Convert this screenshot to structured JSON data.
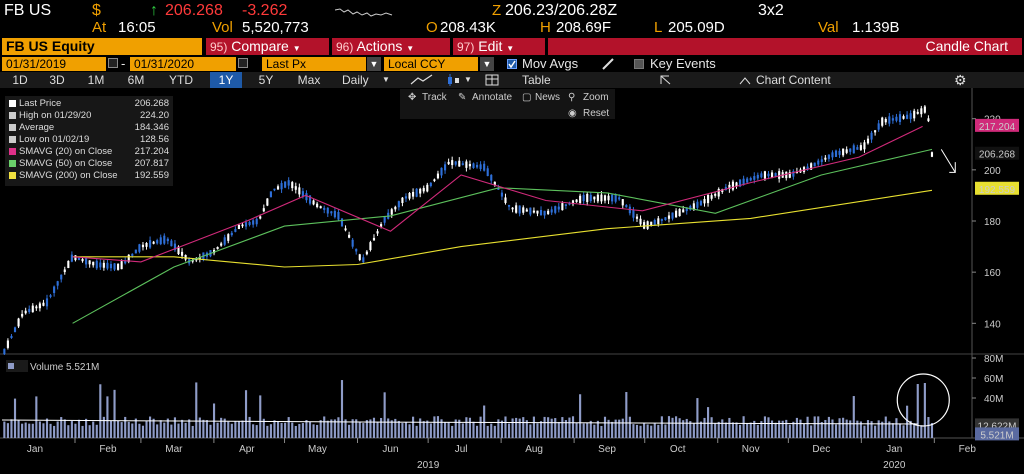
{
  "quote": {
    "ticker": "FB US",
    "dollar": "$",
    "arrow": "↑",
    "last": "206.268",
    "change": "-3.262",
    "at_label": "At",
    "time": "16:05",
    "vol_label": "Vol",
    "volume": "5,520,773",
    "open_label": "O",
    "open": "208.43K",
    "high_label": "H",
    "high": "208.69F",
    "low_label": "L",
    "low": "205.09D",
    "val_label": "Val",
    "value": "1.139B",
    "bidask_prefix": "Z",
    "bidask": "206.23/206.28Z",
    "size": "3x2"
  },
  "toolbar": {
    "security": "FB US Equity",
    "compare_num": "95)",
    "compare": "Compare",
    "actions_num": "96)",
    "actions": "Actions",
    "edit_num": "97)",
    "edit": "Edit",
    "chart_type": "Candle Chart",
    "start_date": "01/31/2019",
    "date_sep": "-",
    "end_date": "01/31/2020",
    "field": "Last Px",
    "currency": "Local CCY",
    "mov_avgs": "Mov Avgs",
    "key_events": "Key Events"
  },
  "periods": [
    "1D",
    "3D",
    "1M",
    "6M",
    "YTD",
    "1Y",
    "5Y",
    "Max"
  ],
  "selected_period": "1Y",
  "period_freq": "Daily",
  "table_label": "Table",
  "chart_content": "Chart Content",
  "tools": {
    "track": "Track",
    "annotate": "Annotate",
    "news": "News",
    "zoom": "Zoom",
    "reset": "Reset"
  },
  "legend": [
    {
      "name": "Last Price",
      "value": "206.268",
      "color": "#ffffff"
    },
    {
      "name": "High on 01/29/20",
      "value": "224.20",
      "color": "#cccccc"
    },
    {
      "name": "Average",
      "value": "184.346",
      "color": "#cccccc"
    },
    {
      "name": "Low on 01/02/19",
      "value": "128.56",
      "color": "#cccccc"
    },
    {
      "name": "SMAVG (20)  on Close",
      "value": "217.204",
      "color": "#e0308a"
    },
    {
      "name": "SMAVG (50)  on Close",
      "value": "207.817",
      "color": "#6ad06a"
    },
    {
      "name": "SMAVG (200)  on Close",
      "value": "192.559",
      "color": "#f0e040"
    }
  ],
  "volume_legend": {
    "name": "Volume",
    "value": "5.521M"
  },
  "colors": {
    "amber": "#f0a000",
    "up_candle": "#2e6fd8",
    "down_candle": "#ffffff",
    "sma20": "#d02a7a",
    "sma50": "#5cc05c",
    "sma200": "#e8e030",
    "volume_bar": "#8f9cc8",
    "volume_avg": "#ffffff"
  },
  "chart_data": {
    "type": "candlestick",
    "period": "Daily",
    "range": "01/31/2019 - 01/31/2020",
    "ylim": [
      128,
      232
    ],
    "price_ticks": [
      140,
      160,
      180,
      200,
      220
    ],
    "volume_ticks": [
      "40M",
      "60M",
      "80M"
    ],
    "volume_ylim": [
      0,
      80
    ],
    "x_month_labels": [
      "Jan",
      "Feb",
      "Mar",
      "Apr",
      "May",
      "Jun",
      "Jul",
      "Aug",
      "Sep",
      "Oct",
      "Nov",
      "Dec",
      "Jan",
      "Feb"
    ],
    "year_labels": [
      "2019",
      "2020"
    ],
    "last_price_tag": "206.268",
    "sma20_tag": "217.204",
    "sma200_tag": "192.559",
    "volume_tags": [
      "12.622M",
      "5.521M"
    ],
    "price_path": [
      [
        "2019-01-02",
        129
      ],
      [
        "2019-01-10",
        144
      ],
      [
        "2019-01-20",
        148
      ],
      [
        "2019-01-31",
        166
      ],
      [
        "2019-02-10",
        163
      ],
      [
        "2019-02-20",
        162
      ],
      [
        "2019-03-01",
        170
      ],
      [
        "2019-03-12",
        173
      ],
      [
        "2019-03-22",
        164
      ],
      [
        "2019-04-01",
        168
      ],
      [
        "2019-04-12",
        178
      ],
      [
        "2019-04-20",
        180
      ],
      [
        "2019-04-26",
        192
      ],
      [
        "2019-05-03",
        195
      ],
      [
        "2019-05-15",
        186
      ],
      [
        "2019-05-24",
        182
      ],
      [
        "2019-06-03",
        164
      ],
      [
        "2019-06-12",
        180
      ],
      [
        "2019-06-21",
        189
      ],
      [
        "2019-07-01",
        193
      ],
      [
        "2019-07-10",
        203
      ],
      [
        "2019-07-25",
        201
      ],
      [
        "2019-08-05",
        185
      ],
      [
        "2019-08-20",
        183
      ],
      [
        "2019-09-05",
        189
      ],
      [
        "2019-09-20",
        189
      ],
      [
        "2019-10-01",
        178
      ],
      [
        "2019-10-10",
        181
      ],
      [
        "2019-10-25",
        187
      ],
      [
        "2019-11-05",
        193
      ],
      [
        "2019-11-20",
        198
      ],
      [
        "2019-12-02",
        198
      ],
      [
        "2019-12-10",
        201
      ],
      [
        "2019-12-20",
        206
      ],
      [
        "2020-01-02",
        209
      ],
      [
        "2020-01-10",
        219
      ],
      [
        "2020-01-22",
        221
      ],
      [
        "2020-01-29",
        224
      ],
      [
        "2020-01-31",
        206
      ]
    ],
    "sma20": [
      [
        "2019-01-31",
        166
      ],
      [
        "2019-03-01",
        164
      ],
      [
        "2019-04-15",
        180
      ],
      [
        "2019-05-10",
        190
      ],
      [
        "2019-06-15",
        176
      ],
      [
        "2019-07-15",
        198
      ],
      [
        "2019-08-20",
        188
      ],
      [
        "2019-09-30",
        184
      ],
      [
        "2019-11-15",
        195
      ],
      [
        "2019-12-31",
        205
      ],
      [
        "2020-01-27",
        217
      ]
    ],
    "sma50": [
      [
        "2019-01-31",
        140
      ],
      [
        "2019-03-15",
        162
      ],
      [
        "2019-05-01",
        178
      ],
      [
        "2019-06-15",
        182
      ],
      [
        "2019-07-31",
        193
      ],
      [
        "2019-09-15",
        191
      ],
      [
        "2019-10-31",
        183
      ],
      [
        "2019-12-15",
        198
      ],
      [
        "2020-01-31",
        208
      ]
    ],
    "sma200": [
      [
        "2019-01-31",
        166
      ],
      [
        "2019-03-15",
        166
      ],
      [
        "2019-05-01",
        162
      ],
      [
        "2019-06-01",
        163
      ],
      [
        "2019-07-15",
        170
      ],
      [
        "2019-09-15",
        177
      ],
      [
        "2019-11-15",
        181
      ],
      [
        "2020-01-31",
        192
      ]
    ]
  }
}
